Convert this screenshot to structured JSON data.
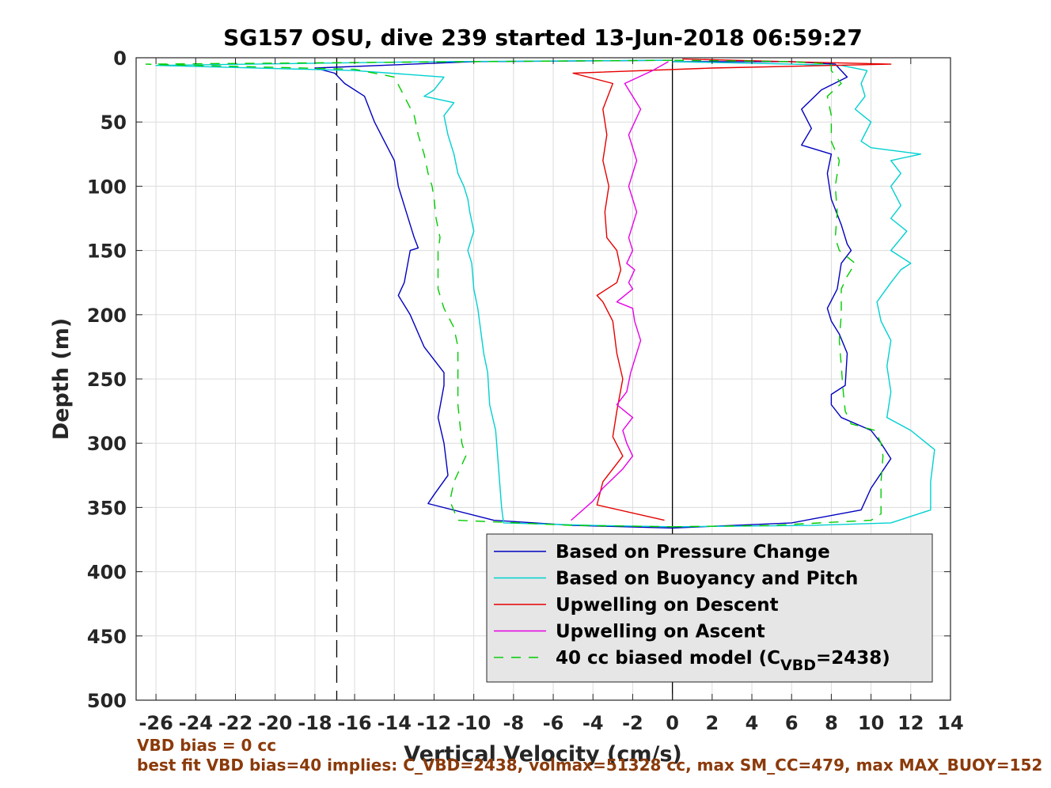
{
  "chart_data": {
    "type": "line",
    "title": "SG157 OSU, dive 239 started 13-Jun-2018 06:59:27",
    "xlabel": "Vertical Velocity (cm/s)",
    "ylabel": "Depth (m)",
    "xlim": [
      -27,
      14
    ],
    "ylim": [
      0,
      500
    ],
    "y_reversed": true,
    "grid": true,
    "legend_placement": "lower-right",
    "xticks": [
      -26,
      -24,
      -22,
      -20,
      -18,
      -16,
      -14,
      -12,
      -10,
      -8,
      -6,
      -4,
      -2,
      0,
      2,
      4,
      6,
      8,
      10,
      12,
      14
    ],
    "yticks": [
      0,
      50,
      100,
      150,
      200,
      250,
      300,
      350,
      400,
      450,
      500
    ],
    "reference_lines": [
      {
        "orientation": "vertical",
        "x": -16.9,
        "style": "dashed",
        "color": "#000000"
      },
      {
        "orientation": "vertical",
        "x": 0,
        "style": "solid",
        "color": "#000000"
      }
    ],
    "series": [
      {
        "name": "Based on Pressure Change",
        "color": "#0000bf",
        "style": "solid",
        "segments": [
          [
            [
              0,
              2
            ],
            [
              -10,
              3
            ],
            [
              -18,
              8
            ],
            [
              -17,
              12
            ],
            [
              -16.5,
              20
            ],
            [
              -15.5,
              30
            ],
            [
              -15,
              50
            ],
            [
              -14.5,
              65
            ],
            [
              -14,
              80
            ],
            [
              -13.8,
              100
            ],
            [
              -13.5,
              115
            ],
            [
              -13.2,
              130
            ],
            [
              -13,
              140
            ],
            [
              -12.8,
              148
            ],
            [
              -13.2,
              150
            ],
            [
              -13.5,
              175
            ],
            [
              -13.8,
              185
            ],
            [
              -13.2,
              200
            ],
            [
              -12.5,
              225
            ],
            [
              -11.5,
              245
            ],
            [
              -11.5,
              255
            ],
            [
              -11.8,
              280
            ],
            [
              -11.5,
              300
            ],
            [
              -11.3,
              325
            ],
            [
              -12,
              340
            ],
            [
              -12.3,
              347
            ],
            [
              -9,
              360
            ],
            [
              -5,
              364
            ],
            [
              0,
              366
            ]
          ],
          [
            [
              0,
              366
            ],
            [
              6,
              362
            ],
            [
              9.5,
              352
            ],
            [
              10,
              335
            ],
            [
              11,
              312
            ],
            [
              10.5,
              300
            ],
            [
              10,
              290
            ],
            [
              8.5,
              280
            ],
            [
              8,
              270
            ],
            [
              8,
              262
            ],
            [
              8.7,
              255
            ],
            [
              8.8,
              230
            ],
            [
              8.4,
              215
            ],
            [
              8,
              205
            ],
            [
              7.8,
              195
            ],
            [
              8.3,
              180
            ],
            [
              8.5,
              160
            ],
            [
              9,
              150
            ],
            [
              8.8,
              145
            ],
            [
              8.5,
              130
            ],
            [
              8,
              110
            ],
            [
              7.8,
              90
            ],
            [
              8,
              75
            ],
            [
              6.5,
              68
            ],
            [
              7,
              55
            ],
            [
              6.5,
              40
            ],
            [
              7.5,
              25
            ],
            [
              8.8,
              15
            ],
            [
              8.2,
              5
            ],
            [
              6,
              3
            ],
            [
              3,
              3
            ],
            [
              0,
              3
            ]
          ]
        ]
      },
      {
        "name": "Based on Buoyancy and Pitch",
        "color": "#00d0d0",
        "style": "solid",
        "segments": [
          [
            [
              0,
              2
            ],
            [
              -12,
              3
            ],
            [
              -26,
              6
            ],
            [
              -16,
              10
            ],
            [
              -11.5,
              15
            ],
            [
              -12,
              25
            ],
            [
              -12.5,
              30
            ],
            [
              -11,
              35
            ],
            [
              -11.5,
              45
            ],
            [
              -11.3,
              60
            ],
            [
              -11,
              75
            ],
            [
              -10.8,
              90
            ],
            [
              -10.5,
              100
            ],
            [
              -10.3,
              110
            ],
            [
              -10.2,
              120
            ],
            [
              -10,
              135
            ],
            [
              -10.3,
              150
            ],
            [
              -10.1,
              160
            ],
            [
              -10,
              180
            ],
            [
              -9.8,
              195
            ],
            [
              -9.5,
              230
            ],
            [
              -9.3,
              245
            ],
            [
              -9.2,
              270
            ],
            [
              -8.9,
              290
            ],
            [
              -8.8,
              310
            ],
            [
              -8.7,
              330
            ],
            [
              -8.6,
              350
            ],
            [
              -8.5,
              362
            ],
            [
              -4,
              364
            ],
            [
              0,
              365
            ]
          ],
          [
            [
              0,
              365
            ],
            [
              7,
              364
            ],
            [
              11,
              362
            ],
            [
              13,
              352
            ],
            [
              13,
              330
            ],
            [
              13.2,
              305
            ],
            [
              12,
              290
            ],
            [
              10.8,
              280
            ],
            [
              11,
              260
            ],
            [
              10.8,
              240
            ],
            [
              11,
              220
            ],
            [
              10.5,
              205
            ],
            [
              10.3,
              190
            ],
            [
              11,
              175
            ],
            [
              11.5,
              165
            ],
            [
              12,
              160
            ],
            [
              11,
              150
            ],
            [
              11.8,
              135
            ],
            [
              11,
              125
            ],
            [
              11.5,
              115
            ],
            [
              11,
              100
            ],
            [
              11.5,
              90
            ],
            [
              11,
              80
            ],
            [
              12.5,
              75
            ],
            [
              10,
              70
            ],
            [
              9.5,
              65
            ],
            [
              10,
              50
            ],
            [
              9.2,
              40
            ],
            [
              9.7,
              30
            ],
            [
              9.5,
              20
            ],
            [
              9.8,
              10
            ],
            [
              8.5,
              6
            ],
            [
              6,
              5
            ],
            [
              0,
              3
            ]
          ]
        ]
      },
      {
        "name": "Upwelling on Descent",
        "color": "#e60000",
        "style": "solid",
        "segments": [
          [
            [
              0.5,
              1
            ],
            [
              11,
              5
            ],
            [
              2,
              8
            ],
            [
              -5,
              12
            ],
            [
              -3,
              20
            ],
            [
              -3.5,
              40
            ],
            [
              -3.3,
              60
            ],
            [
              -3.5,
              80
            ],
            [
              -3.2,
              100
            ],
            [
              -3.4,
              120
            ],
            [
              -3.3,
              140
            ],
            [
              -2.8,
              150
            ],
            [
              -2.6,
              165
            ],
            [
              -2.8,
              175
            ],
            [
              -3.8,
              185
            ],
            [
              -3.5,
              190
            ],
            [
              -3,
              205
            ],
            [
              -2.8,
              230
            ],
            [
              -2.5,
              250
            ],
            [
              -2.8,
              275
            ],
            [
              -3,
              295
            ],
            [
              -2.5,
              310
            ],
            [
              -3.5,
              330
            ],
            [
              -3.8,
              348
            ],
            [
              -0.4,
              360
            ]
          ]
        ]
      },
      {
        "name": "Upwelling on Ascent",
        "color": "#e600e6",
        "style": "solid",
        "segments": [
          [
            [
              -5.1,
              360
            ],
            [
              -4,
              345
            ],
            [
              -3.5,
              335
            ],
            [
              -2.5,
              320
            ],
            [
              -2,
              310
            ],
            [
              -2.3,
              300
            ],
            [
              -2.5,
              290
            ],
            [
              -2,
              280
            ],
            [
              -2.8,
              270
            ],
            [
              -2.3,
              260
            ],
            [
              -2.1,
              245
            ],
            [
              -1.6,
              220
            ],
            [
              -1.9,
              205
            ],
            [
              -2,
              195
            ],
            [
              -2.8,
              190
            ],
            [
              -2,
              180
            ],
            [
              -2.2,
              175
            ],
            [
              -1.9,
              165
            ],
            [
              -2.3,
              160
            ],
            [
              -2,
              150
            ],
            [
              -2.2,
              140
            ],
            [
              -1.8,
              120
            ],
            [
              -2.2,
              100
            ],
            [
              -1.8,
              80
            ],
            [
              -2.2,
              60
            ],
            [
              -1.6,
              40
            ],
            [
              -2.4,
              20
            ],
            [
              -1,
              10
            ],
            [
              -0.2,
              3
            ]
          ]
        ]
      },
      {
        "name": "40 cc biased model (C_VBD=2438)",
        "color": "#00cc00",
        "style": "dashed",
        "segments": [
          [
            [
              0,
              2
            ],
            [
              -10,
              3
            ],
            [
              -26.5,
              5
            ],
            [
              -16,
              9
            ],
            [
              -14,
              15
            ],
            [
              -13.5,
              30
            ],
            [
              -13,
              45
            ],
            [
              -12.8,
              60
            ],
            [
              -12.5,
              75
            ],
            [
              -12.3,
              90
            ],
            [
              -12.1,
              100
            ],
            [
              -12,
              110
            ],
            [
              -11.9,
              125
            ],
            [
              -11.7,
              140
            ],
            [
              -11.8,
              150
            ],
            [
              -11.8,
              180
            ],
            [
              -11.5,
              195
            ],
            [
              -11,
              210
            ],
            [
              -10.8,
              225
            ],
            [
              -10.8,
              240
            ],
            [
              -10.8,
              270
            ],
            [
              -10.6,
              300
            ],
            [
              -10.4,
              310
            ],
            [
              -11,
              330
            ],
            [
              -11.2,
              345
            ],
            [
              -10.8,
              360
            ],
            [
              -5,
              364
            ],
            [
              0,
              365
            ]
          ],
          [
            [
              0,
              365
            ],
            [
              5,
              364
            ],
            [
              10,
              360
            ],
            [
              10.5,
              355
            ],
            [
              10.5,
              330
            ],
            [
              10.6,
              310
            ],
            [
              10.5,
              300
            ],
            [
              10.2,
              290
            ],
            [
              9,
              285
            ],
            [
              8.7,
              275
            ],
            [
              8.6,
              260
            ],
            [
              8.5,
              240
            ],
            [
              8.4,
              220
            ],
            [
              8.5,
              200
            ],
            [
              8.5,
              180
            ],
            [
              8.8,
              170
            ],
            [
              9.2,
              160
            ],
            [
              8.4,
              150
            ],
            [
              8.2,
              140
            ],
            [
              8.3,
              120
            ],
            [
              8.2,
              100
            ],
            [
              8.4,
              80
            ],
            [
              8,
              65
            ],
            [
              8,
              45
            ],
            [
              7.8,
              30
            ],
            [
              8.5,
              20
            ],
            [
              8,
              10
            ],
            [
              8,
              5
            ],
            [
              6,
              3
            ],
            [
              0,
              2
            ]
          ]
        ]
      }
    ]
  },
  "legend_entries": [
    {
      "text": "Based on Pressure Change",
      "color": "#0000bf",
      "dash": ""
    },
    {
      "text": "Based on Buoyancy and Pitch",
      "color": "#00d0d0",
      "dash": ""
    },
    {
      "text": "Upwelling on Descent",
      "color": "#e60000",
      "dash": ""
    },
    {
      "text": "Upwelling on Ascent",
      "color": "#e600e6",
      "dash": ""
    },
    {
      "text_prefix": "40 cc biased model (C",
      "subscript": "VBD",
      "text_suffix": "=2438)",
      "color": "#00cc00",
      "dash": "12,10"
    }
  ],
  "notes": {
    "vbd_bias": "VBD bias = 0 cc",
    "best_fit": "best fit VBD bias=40 implies: C_VBD=2438, volmax=51328 cc, max SM_CC=479, max MAX_BUOY=152"
  }
}
